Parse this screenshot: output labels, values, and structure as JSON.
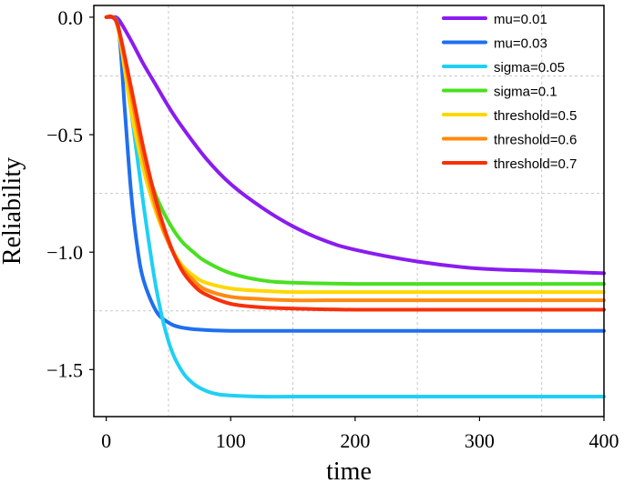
{
  "chart_data": {
    "type": "line",
    "xlabel": "time",
    "ylabel": "Reliability",
    "xlim": [
      -10,
      400
    ],
    "ylim": [
      -1.7,
      0.05
    ],
    "xticks": [
      0,
      100,
      200,
      300,
      400
    ],
    "xtick_labels": [
      "0",
      "100",
      "200",
      "300",
      "400"
    ],
    "yticks": [
      0.0,
      -0.5,
      -1.0,
      -1.5
    ],
    "ytick_labels": [
      "0.0",
      "−0.5",
      "−1.0",
      "−1.5"
    ],
    "grid": true,
    "legend_position": "top-right",
    "series": [
      {
        "name": "mu=0.01",
        "color": "#8a1cf0",
        "x": [
          0,
          5,
          10,
          20,
          30,
          40,
          50,
          60,
          80,
          100,
          125,
          150,
          175,
          200,
          250,
          300,
          350,
          400
        ],
        "y": [
          0,
          0,
          -0.01,
          -0.1,
          -0.2,
          -0.29,
          -0.38,
          -0.46,
          -0.6,
          -0.71,
          -0.81,
          -0.89,
          -0.95,
          -0.99,
          -1.04,
          -1.07,
          -1.08,
          -1.09
        ]
      },
      {
        "name": "mu=0.03",
        "color": "#1f6ff0",
        "x": [
          0,
          5,
          10,
          15,
          20,
          25,
          30,
          40,
          50,
          60,
          75,
          100,
          150,
          200,
          300,
          400
        ],
        "y": [
          0,
          0,
          -0.05,
          -0.4,
          -0.75,
          -0.98,
          -1.12,
          -1.25,
          -1.3,
          -1.32,
          -1.33,
          -1.335,
          -1.335,
          -1.335,
          -1.335,
          -1.335
        ]
      },
      {
        "name": "sigma=0.05",
        "color": "#1fd0f5",
        "x": [
          0,
          5,
          10,
          20,
          30,
          40,
          50,
          60,
          70,
          80,
          90,
          100,
          125,
          150,
          200,
          300,
          400
        ],
        "y": [
          0,
          0,
          -0.06,
          -0.4,
          -0.8,
          -1.15,
          -1.38,
          -1.5,
          -1.56,
          -1.59,
          -1.605,
          -1.61,
          -1.615,
          -1.615,
          -1.615,
          -1.615,
          -1.615
        ]
      },
      {
        "name": "sigma=0.1",
        "color": "#4ae020",
        "x": [
          0,
          5,
          10,
          20,
          30,
          40,
          50,
          60,
          70,
          80,
          100,
          125,
          150,
          200,
          250,
          300,
          400
        ],
        "y": [
          0,
          0,
          -0.06,
          -0.38,
          -0.6,
          -0.76,
          -0.87,
          -0.95,
          -1.0,
          -1.04,
          -1.09,
          -1.12,
          -1.13,
          -1.135,
          -1.135,
          -1.135,
          -1.135
        ]
      },
      {
        "name": "threshold=0.5",
        "color": "#ffd800",
        "x": [
          0,
          5,
          10,
          20,
          30,
          40,
          50,
          60,
          70,
          80,
          100,
          125,
          150,
          200,
          300,
          400
        ],
        "y": [
          0,
          0,
          -0.06,
          -0.4,
          -0.65,
          -0.83,
          -0.96,
          -1.05,
          -1.1,
          -1.13,
          -1.155,
          -1.165,
          -1.17,
          -1.17,
          -1.17,
          -1.17
        ]
      },
      {
        "name": "threshold=0.6",
        "color": "#ff8a10",
        "x": [
          0,
          5,
          10,
          20,
          30,
          40,
          50,
          60,
          70,
          80,
          100,
          125,
          150,
          200,
          300,
          400
        ],
        "y": [
          0,
          0,
          -0.05,
          -0.33,
          -0.6,
          -0.81,
          -0.96,
          -1.06,
          -1.12,
          -1.16,
          -1.19,
          -1.2,
          -1.205,
          -1.205,
          -1.205,
          -1.205
        ]
      },
      {
        "name": "threshold=0.7",
        "color": "#f8300a",
        "x": [
          0,
          5,
          10,
          20,
          30,
          40,
          50,
          60,
          70,
          80,
          100,
          125,
          150,
          200,
          300,
          400
        ],
        "y": [
          0,
          0,
          -0.05,
          -0.3,
          -0.56,
          -0.78,
          -0.95,
          -1.07,
          -1.14,
          -1.18,
          -1.22,
          -1.235,
          -1.24,
          -1.245,
          -1.245,
          -1.245
        ]
      }
    ]
  }
}
